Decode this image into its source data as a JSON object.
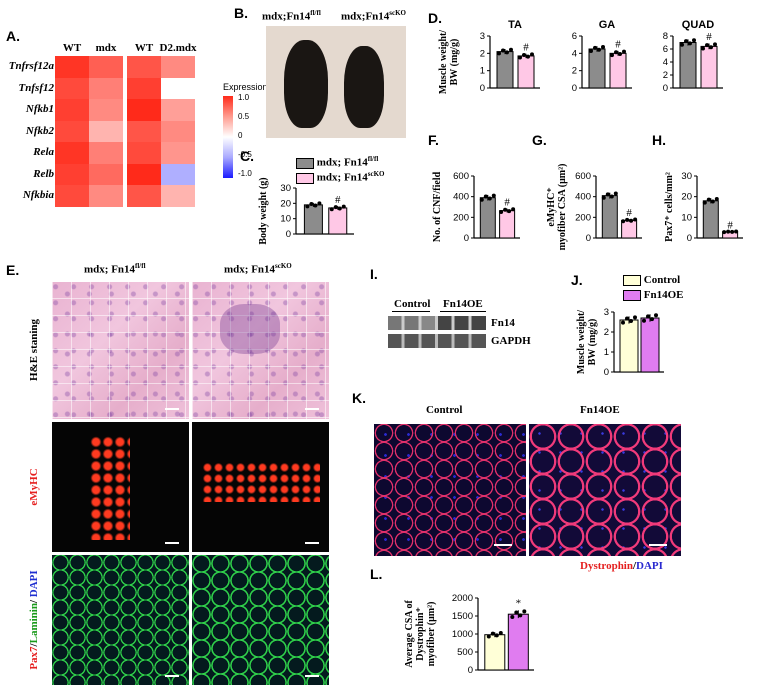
{
  "panelA": {
    "label": "A.",
    "cols": [
      "WT",
      "mdx",
      "WT",
      "D2.mdx"
    ],
    "genes": [
      "Tnfrsf12a",
      "Tnfsf12",
      "Nfkb1",
      "Nfkb2",
      "Rela",
      "Relb",
      "Nfkbia"
    ],
    "legend_title": "Expression",
    "legend_ticks": [
      "1.0",
      "0.5",
      "0",
      "-0.5",
      "-1.0"
    ],
    "colors": {
      "high": "#ff2a1a",
      "mid": "#ffffff",
      "low": "#1a1aff"
    },
    "cells": [
      [
        0.95,
        0.75,
        0.8,
        0.55
      ],
      [
        0.85,
        0.6,
        0.9,
        0.0
      ],
      [
        0.9,
        0.55,
        1.0,
        0.45
      ],
      [
        0.85,
        0.35,
        0.8,
        0.55
      ],
      [
        0.95,
        0.6,
        0.85,
        0.5
      ],
      [
        0.9,
        0.7,
        1.0,
        -0.35
      ],
      [
        0.85,
        0.55,
        0.8,
        0.35
      ]
    ]
  },
  "panelB": {
    "label": "B.",
    "left_title": "mdx;Fn14",
    "left_sup": "fl/fl",
    "right_title": "mdx;Fn14",
    "right_sup": "scKO"
  },
  "panelC": {
    "label": "C.",
    "legend1": "mdx; Fn14",
    "legend1_sup": "fl/fl",
    "legend2": "mdx; Fn14",
    "legend2_sup": "scKO",
    "ylabel": "Body weight (g)",
    "yticks": [
      "0",
      "10",
      "20",
      "30"
    ],
    "sig": "#"
  },
  "panelD": {
    "label": "D.",
    "ylabel_line1": "Muscle weight/",
    "ylabel_line2": "BW (mg/g)",
    "sig": "#",
    "subplots": [
      {
        "title": "TA",
        "yticks": [
          "0",
          "1",
          "2",
          "3"
        ]
      },
      {
        "title": "GA",
        "yticks": [
          "0",
          "2",
          "4",
          "6"
        ]
      },
      {
        "title": "QUAD",
        "yticks": [
          "0",
          "2",
          "4",
          "6",
          "8"
        ]
      }
    ]
  },
  "panelF": {
    "label": "F.",
    "ylabel": "No. of CNF/field",
    "yticks": [
      "0",
      "200",
      "400",
      "600"
    ],
    "sig": "#"
  },
  "panelG": {
    "label": "G.",
    "ylabel_line1": "eMyHC",
    "ylabel_line2": "myofiber CSA (μm",
    "yticks": [
      "0",
      "200",
      "400",
      "600"
    ],
    "sig": "#"
  },
  "panelH": {
    "label": "H.",
    "ylabel": "Pax7",
    "ylabel_rest": " cells/mm",
    "yticks": [
      "0",
      "10",
      "20",
      "30"
    ],
    "sig": "#"
  },
  "panelE": {
    "label": "E.",
    "col1": "mdx; Fn14",
    "col1_sup": "fl/fl",
    "col2": "mdx; Fn14",
    "col2_sup": "scKO",
    "row1": "H&E staning",
    "row2": "eMyHC",
    "row3_a": "Pax7",
    "row3_b": "Laminin",
    "row3_c": "DAPI"
  },
  "panelI": {
    "label": "I.",
    "group1": "Control",
    "group2": "Fn14OE",
    "band1": "Fn14",
    "band2": "GAPDH"
  },
  "panelJ": {
    "label": "J.",
    "legend1": "Control",
    "legend2": "Fn14OE",
    "ylabel_line1": "Muscle weight/",
    "ylabel_line2": "BW (mg/g)",
    "yticks": [
      "0",
      "1",
      "2",
      "3"
    ]
  },
  "panelK": {
    "label": "K.",
    "col1": "Control",
    "col2": "Fn14OE",
    "stain1": "Dystrophin",
    "stain2": "DAPI"
  },
  "panelL": {
    "label": "L.",
    "ylabel_line1": "Average CSA of",
    "ylabel_line2": "Dystrophin",
    "ylabel_line3": "myofiber (μm",
    "yticks": [
      "0",
      "500",
      "1000",
      "1500",
      "2000"
    ],
    "sig": "*"
  },
  "chart_data": [
    {
      "type": "bar",
      "panel": "C",
      "categories": [
        "mdx; Fn14fl/fl",
        "mdx; Fn14scKO"
      ],
      "values": [
        19,
        17
      ],
      "ylabel": "Body weight (g)",
      "ylim": [
        0,
        30
      ]
    },
    {
      "type": "bar",
      "panel": "D-TA",
      "title": "TA",
      "categories": [
        "mdx; Fn14fl/fl",
        "mdx; Fn14scKO"
      ],
      "values": [
        2.1,
        1.85
      ],
      "ylim": [
        0,
        3
      ]
    },
    {
      "type": "bar",
      "panel": "D-GA",
      "title": "GA",
      "categories": [
        "mdx; Fn14fl/fl",
        "mdx; Fn14scKO"
      ],
      "values": [
        4.5,
        4.0
      ],
      "ylim": [
        0,
        6
      ]
    },
    {
      "type": "bar",
      "panel": "D-QUAD",
      "title": "QUAD",
      "categories": [
        "mdx; Fn14fl/fl",
        "mdx; Fn14scKO"
      ],
      "values": [
        7.0,
        6.4
      ],
      "ylim": [
        0,
        8
      ]
    },
    {
      "type": "bar",
      "panel": "F",
      "categories": [
        "mdx; Fn14fl/fl",
        "mdx; Fn14scKO"
      ],
      "values": [
        390,
        265
      ],
      "ylabel": "No. of CNF/field",
      "ylim": [
        0,
        600
      ]
    },
    {
      "type": "bar",
      "panel": "G",
      "categories": [
        "mdx; Fn14fl/fl",
        "mdx; Fn14scKO"
      ],
      "values": [
        410,
        170
      ],
      "ylim": [
        0,
        600
      ]
    },
    {
      "type": "bar",
      "panel": "H",
      "categories": [
        "mdx; Fn14fl/fl",
        "mdx; Fn14scKO"
      ],
      "values": [
        18,
        3
      ],
      "ylim": [
        0,
        30
      ]
    },
    {
      "type": "bar",
      "panel": "J",
      "categories": [
        "Control",
        "Fn14OE"
      ],
      "values": [
        2.6,
        2.7
      ],
      "ylim": [
        0,
        3
      ]
    },
    {
      "type": "bar",
      "panel": "L",
      "categories": [
        "Control",
        "Fn14OE"
      ],
      "values": [
        980,
        1550
      ],
      "ylim": [
        0,
        2000
      ]
    }
  ]
}
